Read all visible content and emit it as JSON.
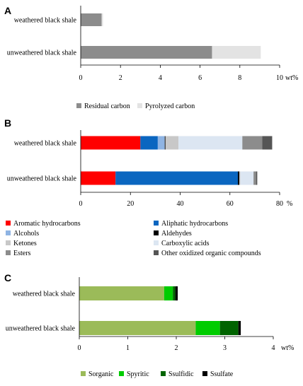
{
  "chart_data": [
    {
      "type": "bar",
      "orientation": "horizontal",
      "stacked": true,
      "panel": "A",
      "categories": [
        "weathered black shale",
        "unweathered black shale"
      ],
      "series": [
        {
          "name": "Residual carbon",
          "values": [
            1.05,
            6.6
          ],
          "color": "#8c8c8c"
        },
        {
          "name": "Pyrolyzed carbon",
          "values": [
            0.07,
            2.45
          ],
          "color": "#e3e3e3"
        }
      ],
      "xlim": [
        0,
        10
      ],
      "xticks": [
        "0",
        "2",
        "4",
        "6",
        "8",
        "10"
      ],
      "xunit": "wt%",
      "grid": false,
      "legend_position": "bottom"
    },
    {
      "type": "bar",
      "orientation": "horizontal",
      "stacked": true,
      "panel": "B",
      "categories": [
        "weathered black shale",
        "unweathered black shale"
      ],
      "series": [
        {
          "name": "Aromatic hydrocarbons",
          "values": [
            24,
            14
          ],
          "color": "#ff0000"
        },
        {
          "name": "Aliphatic hydrocarbons",
          "values": [
            7,
            49.2
          ],
          "color": "#0a66c0"
        },
        {
          "name": "Alcohols",
          "values": [
            2.8,
            0
          ],
          "color": "#8fb4e3"
        },
        {
          "name": "Aldehydes",
          "values": [
            0.3,
            0.6
          ],
          "color": "#000000"
        },
        {
          "name": "Ketones",
          "values": [
            5.2,
            0.4
          ],
          "color": "#c8c8c8"
        },
        {
          "name": "Carboxylic acids",
          "values": [
            25.7,
            5.3
          ],
          "color": "#dce6f2"
        },
        {
          "name": "Esters",
          "values": [
            8,
            1
          ],
          "color": "#8c8c8c"
        },
        {
          "name": "Other oxidized organic compounds",
          "values": [
            4,
            0.5
          ],
          "color": "#555555"
        }
      ],
      "xlim": [
        0,
        80
      ],
      "xticks": [
        "0",
        "20",
        "40",
        "60",
        "80"
      ],
      "xunit": "%",
      "grid": false,
      "legend_position": "bottom"
    },
    {
      "type": "bar",
      "orientation": "horizontal",
      "stacked": true,
      "panel": "C",
      "categories": [
        "weathered black shale",
        "unweathered black shale"
      ],
      "series": [
        {
          "name": "Sorganic",
          "values": [
            1.75,
            2.4
          ],
          "color": "#9bbb59"
        },
        {
          "name": "Spyritic",
          "values": [
            0.18,
            0.5
          ],
          "color": "#00cc00"
        },
        {
          "name": "Ssulfidic",
          "values": [
            0.05,
            0.38
          ],
          "color": "#006400"
        },
        {
          "name": "Ssulfate",
          "values": [
            0.05,
            0.05
          ],
          "color": "#000000"
        }
      ],
      "xlim": [
        0,
        4
      ],
      "xticks": [
        "0",
        "1",
        "2",
        "3",
        "4"
      ],
      "xunit": "wt%",
      "grid": false,
      "legend_position": "bottom"
    }
  ]
}
